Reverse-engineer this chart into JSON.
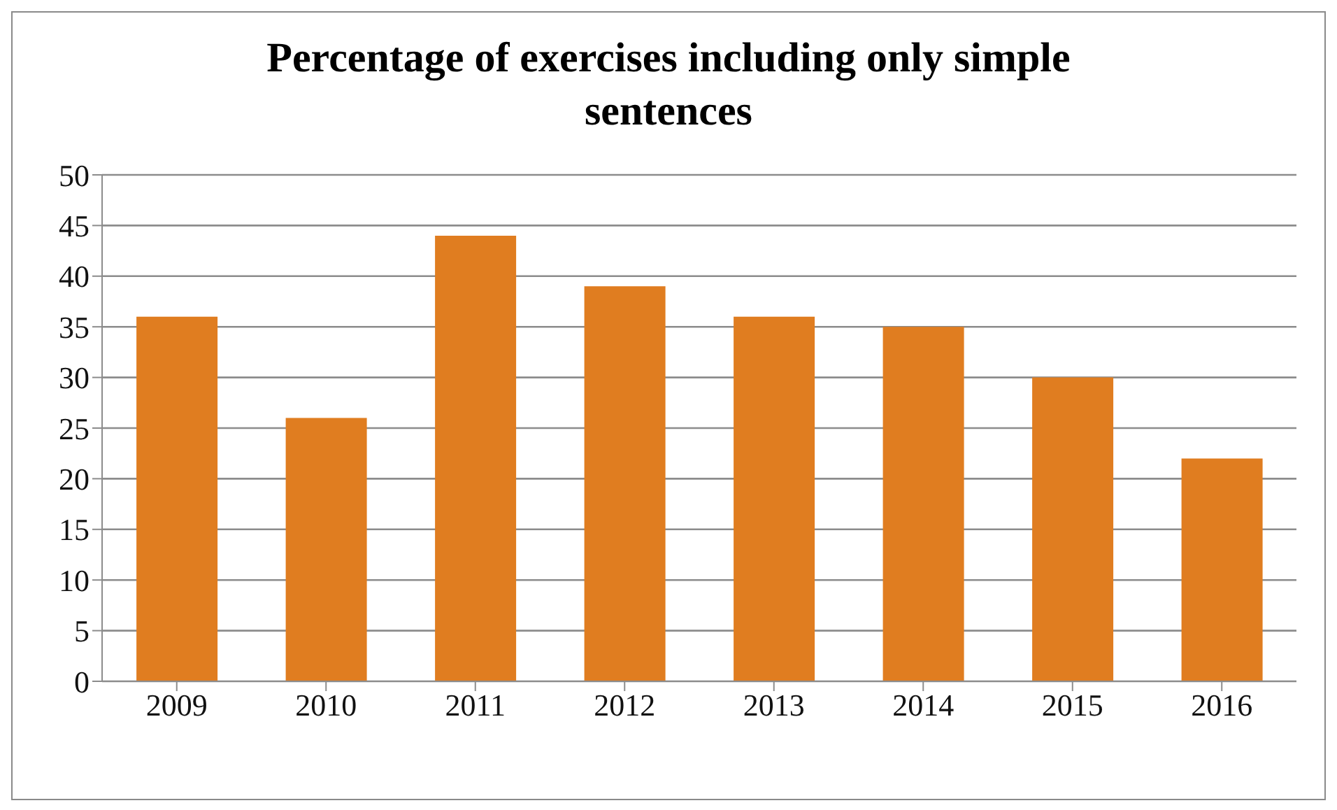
{
  "chart_data": {
    "type": "bar",
    "title": "Percentage of exercises including only simple sentences",
    "categories": [
      "2009",
      "2010",
      "2011",
      "2012",
      "2013",
      "2014",
      "2015",
      "2016"
    ],
    "values": [
      36,
      26,
      44,
      39,
      36,
      35,
      30,
      22
    ],
    "color": "#e07d20",
    "ylim": [
      0,
      50
    ],
    "yticks": [
      0,
      5,
      10,
      15,
      20,
      25,
      30,
      35,
      40,
      45,
      50
    ],
    "grid": "y"
  }
}
